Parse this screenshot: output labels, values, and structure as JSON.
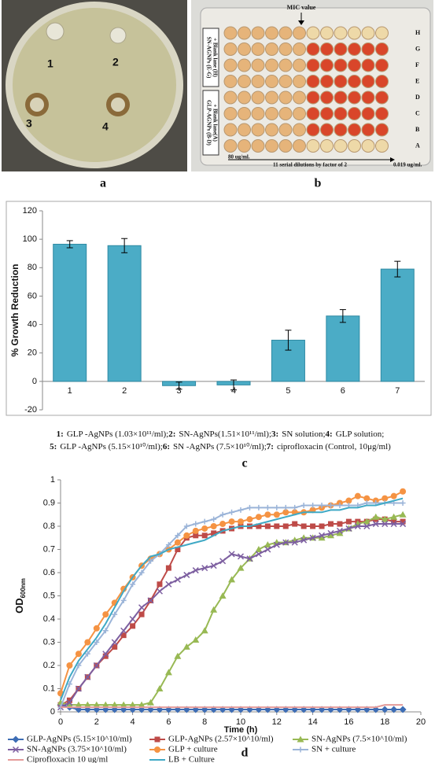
{
  "panel_labels": [
    "a",
    "b",
    "c",
    "d"
  ],
  "photo_a": {
    "well_labels": [
      "1",
      "2",
      "3",
      "4"
    ]
  },
  "photo_b": {
    "mic": "MIC value",
    "rows": [
      "H",
      "G",
      "F",
      "E",
      "D",
      "C",
      "B",
      "A"
    ],
    "side_top": [
      "SN-AGNPs (E-G)",
      "+ Blank lane (H)"
    ],
    "side_bottom": [
      "GLP-AGNPs (B-D)",
      "+ Blank lane(A)"
    ],
    "left_conc": "80 ug/ml.",
    "dilution": "11 serial dilutions by factor of 2",
    "right_conc": "0.019 ug/ml."
  },
  "chart_data": [
    {
      "type": "bar",
      "ylabel": "% Growth Reduction",
      "categories": [
        "1",
        "2",
        "3",
        "4",
        "5",
        "6",
        "7"
      ],
      "values": [
        96.5,
        95.5,
        -3,
        -2.5,
        29,
        46,
        79
      ],
      "errors": [
        2.5,
        5,
        2.5,
        3.5,
        7,
        4.5,
        5.5
      ],
      "color": "#4bacc6",
      "ylim": [
        -20,
        120
      ],
      "yticks": [
        -20,
        0,
        20,
        40,
        60,
        80,
        100,
        120
      ],
      "grid": false,
      "legend_items": [
        {
          "key": "1:",
          "text": "GLP -AgNPs (1.03×10¹¹/ml);"
        },
        {
          "key": "2:",
          "text": "SN-AgNPs(1.51×10¹¹/ml);"
        },
        {
          "key": "3:",
          "text": "SN solution;"
        },
        {
          "key": "4:",
          "text": "GLP solution;"
        },
        {
          "key": "5:",
          "text": "GLP -AgNPs (5.15×10¹⁰/ml);"
        },
        {
          "key": "6:",
          "text": "SN -AgNPs (7.5×10¹⁰/ml);"
        },
        {
          "key": "7:",
          "text": "ciprofloxacin (Control, 10μg/ml)"
        }
      ]
    },
    {
      "type": "line",
      "ylabel": "OD",
      "ylabel_sub": "600nm",
      "xlabel": "Time (h)",
      "xlim": [
        0,
        20
      ],
      "xticks": [
        0,
        2,
        4,
        6,
        8,
        10,
        12,
        14,
        16,
        18,
        20
      ],
      "ylim": [
        0,
        1
      ],
      "yticks": [
        0,
        0.1,
        0.2,
        0.3,
        0.4,
        0.5,
        0.6,
        0.7,
        0.8,
        0.9,
        1
      ],
      "grid": false,
      "x": [
        0,
        0.5,
        1,
        1.5,
        2,
        2.5,
        3,
        3.5,
        4,
        4.5,
        5,
        5.5,
        6,
        6.5,
        7,
        7.5,
        8,
        8.5,
        9,
        9.5,
        10,
        10.5,
        11,
        11.5,
        12,
        12.5,
        13,
        13.5,
        14,
        14.5,
        15,
        15.5,
        16,
        16.5,
        17,
        17.5,
        18,
        18.5,
        19
      ],
      "series": [
        {
          "name": "GLP-AgNPs (5.15×10^10/ml)",
          "color": "#3d6db5",
          "marker": "diamond",
          "values": [
            0.03,
            0.02,
            0.01,
            0.01,
            0.01,
            0.01,
            0.01,
            0.01,
            0.01,
            0.01,
            0.01,
            0.01,
            0.01,
            0.01,
            0.01,
            0.01,
            0.01,
            0.01,
            0.01,
            0.01,
            0.01,
            0.01,
            0.01,
            0.01,
            0.01,
            0.01,
            0.01,
            0.01,
            0.01,
            0.01,
            0.01,
            0.01,
            0.01,
            0.01,
            0.01,
            0.01,
            0.01,
            0.01,
            0.01
          ]
        },
        {
          "name": "GLP-AgNPs (2.57×10^10/ml)",
          "color": "#be4b48",
          "marker": "square",
          "values": [
            0.03,
            0.05,
            0.1,
            0.15,
            0.2,
            0.24,
            0.28,
            0.33,
            0.37,
            0.42,
            0.48,
            0.55,
            0.62,
            0.7,
            0.75,
            0.76,
            0.76,
            0.77,
            0.78,
            0.79,
            0.8,
            0.8,
            0.8,
            0.8,
            0.8,
            0.8,
            0.81,
            0.8,
            0.8,
            0.8,
            0.81,
            0.81,
            0.82,
            0.82,
            0.82,
            0.83,
            0.83,
            0.82,
            0.82
          ]
        },
        {
          "name": "SN-AgNPs (7.5×10^10/ml)",
          "color": "#98b954",
          "marker": "triangle",
          "values": [
            0.04,
            0.03,
            0.03,
            0.03,
            0.03,
            0.03,
            0.03,
            0.03,
            0.03,
            0.03,
            0.04,
            0.1,
            0.17,
            0.24,
            0.28,
            0.31,
            0.35,
            0.44,
            0.5,
            0.57,
            0.62,
            0.66,
            0.7,
            0.72,
            0.73,
            0.73,
            0.74,
            0.75,
            0.75,
            0.75,
            0.76,
            0.77,
            0.79,
            0.81,
            0.82,
            0.84,
            0.83,
            0.84,
            0.85
          ]
        },
        {
          "name": "SN-AgNPs (3.75×10^10/ml)",
          "color": "#7d5fa0",
          "marker": "x",
          "values": [
            0.02,
            0.04,
            0.1,
            0.15,
            0.2,
            0.25,
            0.3,
            0.35,
            0.4,
            0.45,
            0.48,
            0.52,
            0.55,
            0.57,
            0.59,
            0.61,
            0.62,
            0.63,
            0.65,
            0.68,
            0.67,
            0.66,
            0.68,
            0.7,
            0.72,
            0.73,
            0.73,
            0.74,
            0.75,
            0.76,
            0.77,
            0.78,
            0.79,
            0.8,
            0.8,
            0.81,
            0.81,
            0.81,
            0.81
          ]
        },
        {
          "name": "GLP + culture",
          "color": "#f59343",
          "marker": "circle",
          "values": [
            0.08,
            0.2,
            0.25,
            0.3,
            0.36,
            0.42,
            0.47,
            0.53,
            0.58,
            0.63,
            0.66,
            0.68,
            0.7,
            0.73,
            0.76,
            0.78,
            0.79,
            0.8,
            0.81,
            0.82,
            0.82,
            0.83,
            0.84,
            0.85,
            0.85,
            0.86,
            0.86,
            0.86,
            0.87,
            0.88,
            0.89,
            0.9,
            0.91,
            0.93,
            0.92,
            0.91,
            0.92,
            0.93,
            0.95
          ]
        },
        {
          "name": "SN + culture",
          "color": "#9bb4d8",
          "marker": "plus",
          "values": [
            0.02,
            0.12,
            0.2,
            0.25,
            0.3,
            0.35,
            0.42,
            0.48,
            0.55,
            0.6,
            0.65,
            0.68,
            0.72,
            0.76,
            0.8,
            0.81,
            0.82,
            0.83,
            0.85,
            0.86,
            0.87,
            0.88,
            0.88,
            0.88,
            0.88,
            0.88,
            0.88,
            0.89,
            0.89,
            0.89,
            0.89,
            0.89,
            0.89,
            0.89,
            0.9,
            0.9,
            0.9,
            0.9,
            0.9
          ]
        },
        {
          "name": "Ciprofloxacin 10 ug/ml",
          "color": "#e49a98",
          "marker": "none",
          "values": [
            0.02,
            0.02,
            0.02,
            0.02,
            0.02,
            0.02,
            0.02,
            0.02,
            0.02,
            0.02,
            0.02,
            0.02,
            0.02,
            0.02,
            0.02,
            0.02,
            0.02,
            0.02,
            0.02,
            0.02,
            0.02,
            0.02,
            0.02,
            0.02,
            0.02,
            0.02,
            0.02,
            0.02,
            0.02,
            0.02,
            0.02,
            0.02,
            0.02,
            0.02,
            0.02,
            0.02,
            0.03,
            0.03,
            0.03
          ]
        },
        {
          "name": "LB + Culture",
          "color": "#3fa9c5",
          "marker": "none",
          "values": [
            0.05,
            0.15,
            0.22,
            0.27,
            0.32,
            0.38,
            0.45,
            0.52,
            0.58,
            0.63,
            0.67,
            0.68,
            0.7,
            0.71,
            0.72,
            0.73,
            0.74,
            0.76,
            0.78,
            0.79,
            0.8,
            0.8,
            0.81,
            0.82,
            0.83,
            0.84,
            0.85,
            0.86,
            0.86,
            0.86,
            0.87,
            0.87,
            0.88,
            0.88,
            0.89,
            0.89,
            0.9,
            0.91,
            0.92
          ]
        }
      ]
    }
  ]
}
